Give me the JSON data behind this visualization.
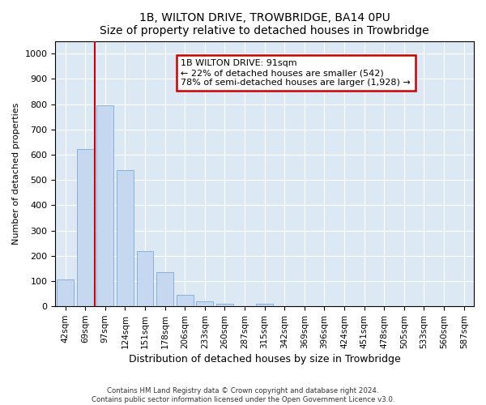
{
  "title": "1B, WILTON DRIVE, TROWBRIDGE, BA14 0PU",
  "subtitle": "Size of property relative to detached houses in Trowbridge",
  "xlabel": "Distribution of detached houses by size in Trowbridge",
  "ylabel": "Number of detached properties",
  "categories": [
    "42sqm",
    "69sqm",
    "97sqm",
    "124sqm",
    "151sqm",
    "178sqm",
    "206sqm",
    "233sqm",
    "260sqm",
    "287sqm",
    "315sqm",
    "342sqm",
    "369sqm",
    "396sqm",
    "424sqm",
    "451sqm",
    "478sqm",
    "505sqm",
    "533sqm",
    "560sqm",
    "587sqm"
  ],
  "values": [
    105,
    622,
    795,
    540,
    220,
    135,
    45,
    20,
    10,
    0,
    10,
    0,
    0,
    0,
    0,
    0,
    0,
    0,
    0,
    0,
    0
  ],
  "bar_color": "#c5d8f0",
  "bar_edge_color": "#8ab0d8",
  "vline_color": "#cc0000",
  "annotation_text": "1B WILTON DRIVE: 91sqm\n← 22% of detached houses are smaller (542)\n78% of semi-detached houses are larger (1,928) →",
  "annotation_box_facecolor": "#ffffff",
  "annotation_box_edgecolor": "#cc0000",
  "ylim": [
    0,
    1050
  ],
  "yticks": [
    0,
    100,
    200,
    300,
    400,
    500,
    600,
    700,
    800,
    900,
    1000
  ],
  "background_color": "#dce9f5",
  "figure_background": "#ffffff",
  "footer_line1": "Contains HM Land Registry data © Crown copyright and database right 2024.",
  "footer_line2": "Contains public sector information licensed under the Open Government Licence v3.0."
}
